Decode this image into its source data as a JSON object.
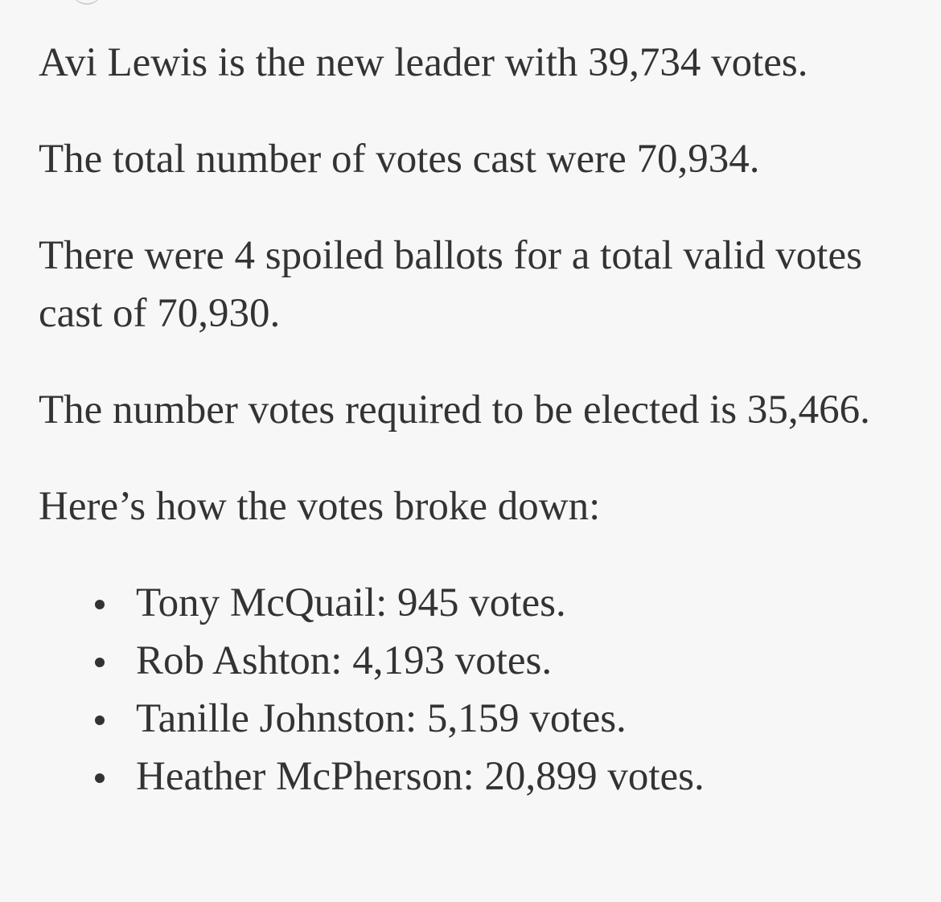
{
  "article": {
    "paragraphs": [
      "Avi Lewis is the new leader with 39,734 votes.",
      "The total number of votes cast were 70,934.",
      "There were 4 spoiled ballots for a total valid votes cast of 70,930.",
      "The number votes required to be elected is 35,466.",
      "Here’s how the votes broke down:"
    ],
    "results": [
      "Tony McQuail: 945 votes.",
      "Rob Ashton: 4,193 votes.",
      "Tanille Johnston: 5,159 votes.",
      "Heather McPherson: 20,899 votes."
    ]
  }
}
